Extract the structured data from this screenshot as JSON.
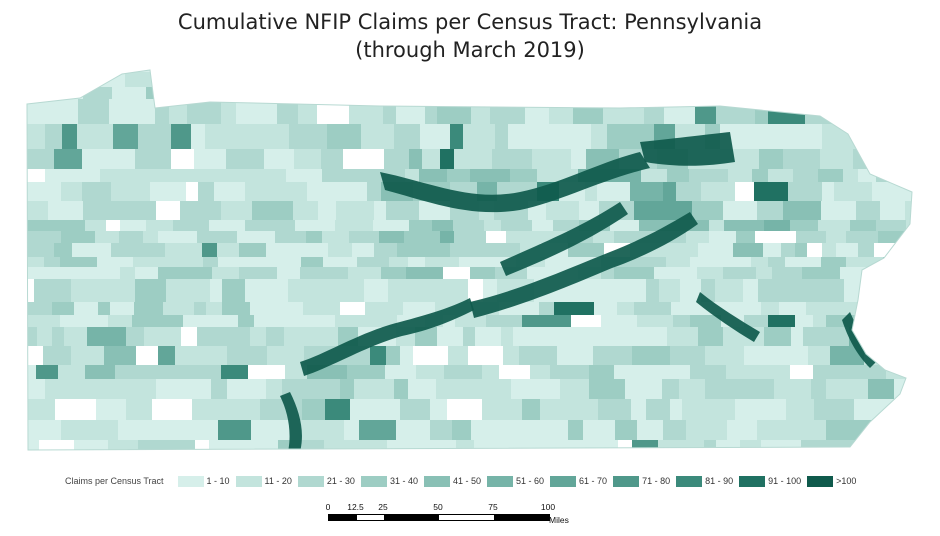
{
  "title_line1": "Cumulative NFIP Claims per Census Tract: Pennsylvania",
  "title_line2": "(through March 2019)",
  "legend": {
    "title": "Claims per Census Tract",
    "classes": [
      {
        "label": "1 - 10",
        "color": "#d6efea"
      },
      {
        "label": "11 - 20",
        "color": "#c3e4dd"
      },
      {
        "label": "21 - 30",
        "color": "#b0d8d0"
      },
      {
        "label": "31 - 40",
        "color": "#9dcdc3"
      },
      {
        "label": "41 - 50",
        "color": "#89c0b5"
      },
      {
        "label": "51 - 60",
        "color": "#76b4a8"
      },
      {
        "label": "61 - 70",
        "color": "#62a699"
      },
      {
        "label": "71 - 80",
        "color": "#4f988a"
      },
      {
        "label": "81 - 90",
        "color": "#3b8a7b"
      },
      {
        "label": "91 - 100",
        "color": "#207162"
      },
      {
        "label": ">100",
        "color": "#0f5a4c"
      }
    ]
  },
  "scale_bar": {
    "ticks": [
      "0",
      "12.5",
      "25",
      "50",
      "75",
      "100"
    ],
    "tick_values": [
      0,
      12.5,
      25,
      50,
      75,
      100
    ],
    "units": "Miles"
  }
}
